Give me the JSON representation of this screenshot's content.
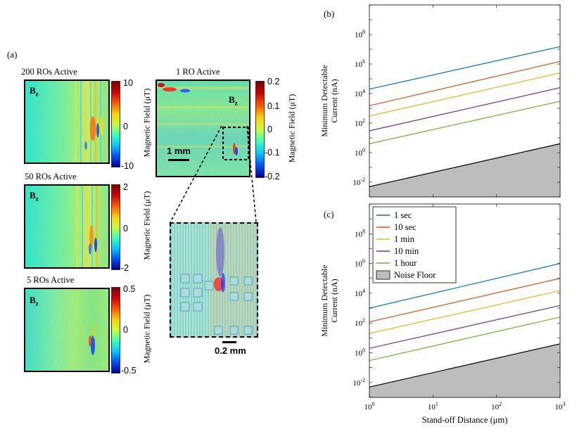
{
  "figure": {
    "panel_a_label": "(a)",
    "panel_b_label": "(b)",
    "panel_c_label": "(c)"
  },
  "maps": [
    {
      "title": "200 ROs Active",
      "field": "B",
      "sub": "z",
      "cbar_ticks": [
        "10",
        "0",
        "-10"
      ],
      "unit": "Magnetic Field (μT)"
    },
    {
      "title": "50 ROs Active",
      "field": "B",
      "sub": "z",
      "cbar_ticks": [
        "2",
        "0",
        "-2"
      ],
      "unit": "Magnetic Field (μT)"
    },
    {
      "title": "5 ROs  Active",
      "field": "B",
      "sub": "z",
      "cbar_ticks": [
        "0.5",
        "0",
        "-0.5"
      ],
      "unit": "Magnetic Field (μT)"
    },
    {
      "title": "1 RO  Active",
      "field": "B",
      "sub": "z",
      "cbar_ticks": [
        "0.2",
        "0.1",
        "0",
        "-0.1",
        "-0.2"
      ],
      "unit": "Magnetic Field (μT)",
      "scale_bar": "1 mm"
    }
  ],
  "inset": {
    "scale_bar": "0.2 mm"
  },
  "colors": {
    "1 sec": "#0072bd",
    "10 sec": "#d95319",
    "1 min": "#edb120",
    "10 min": "#7e2f8e",
    "1 hour": "#77ac30",
    "noise": "#000000",
    "noise_fill": "#bdbdbd"
  },
  "chart_data": [
    {
      "type": "line",
      "panel": "(b)",
      "x_scale": "log",
      "y_scale": "log",
      "xlim": [
        1,
        1000
      ],
      "ylim": [
        0.001,
        10000000000
      ],
      "ylabel_line1": "Minimum Detectable",
      "ylabel_line2": "Current (nA)",
      "xlabel": "",
      "x_tick_labels": [
        "10^0",
        "10^1",
        "10^2",
        "10^3"
      ],
      "y_tick_labels": [
        "10^-2",
        "10^0",
        "10^2",
        "10^4",
        "10^6",
        "10^8"
      ],
      "x": [
        1,
        1000
      ],
      "series": [
        {
          "name": "1 sec",
          "values": [
            20000,
            15000000
          ]
        },
        {
          "name": "10 sec",
          "values": [
            1500,
            1500000
          ]
        },
        {
          "name": "1 min",
          "values": [
            300,
            250000
          ]
        },
        {
          "name": "10 min",
          "values": [
            30,
            25000
          ]
        },
        {
          "name": "1 hour",
          "values": [
            4,
            3000
          ]
        }
      ],
      "noise_floor": {
        "name": "Noise Floor",
        "values": [
          0.005,
          4
        ]
      }
    },
    {
      "type": "line",
      "panel": "(c)",
      "x_scale": "log",
      "y_scale": "log",
      "xlim": [
        1,
        1000
      ],
      "ylim": [
        0.001,
        10000000000
      ],
      "ylabel_line1": "Minimum Detectable",
      "ylabel_line2": "Current (nA)",
      "xlabel": "Stand-off Distance (μm)",
      "x_tick_labels": [
        "10^0",
        "10^1",
        "10^2",
        "10^3"
      ],
      "y_tick_labels": [
        "10^-2",
        "10^0",
        "10^2",
        "10^4",
        "10^6",
        "10^8"
      ],
      "legend_position": "top-left",
      "x": [
        1,
        1000
      ],
      "series": [
        {
          "name": "1 sec",
          "values": [
            1000,
            1000000
          ]
        },
        {
          "name": "10 sec",
          "values": [
            120,
            100000
          ]
        },
        {
          "name": "1 min",
          "values": [
            20,
            15000
          ]
        },
        {
          "name": "10 min",
          "values": [
            2,
            1500
          ]
        },
        {
          "name": "1 hour",
          "values": [
            0.3,
            250
          ]
        }
      ],
      "noise_floor": {
        "name": "Noise Floor",
        "values": [
          0.005,
          4
        ]
      }
    }
  ]
}
